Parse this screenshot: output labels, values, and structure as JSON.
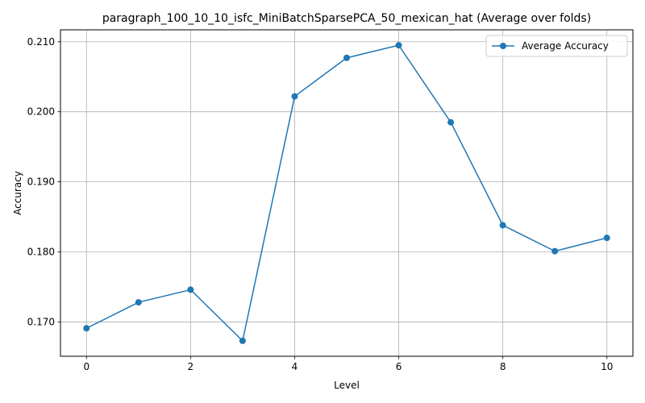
{
  "chart_data": {
    "type": "line",
    "title": "paragraph_100_10_10_isfc_MiniBatchSparsePCA_50_mexican_hat (Average over folds)",
    "xlabel": "Level",
    "ylabel": "Accuracy",
    "xlim": [
      -0.5,
      10.5
    ],
    "ylim": [
      0.1651,
      0.2117
    ],
    "xticks": [
      0,
      2,
      4,
      6,
      8,
      10
    ],
    "yticks": [
      0.17,
      0.18,
      0.19,
      0.2,
      0.21
    ],
    "ytick_labels": [
      "0.170",
      "0.180",
      "0.190",
      "0.200",
      "0.210"
    ],
    "grid": true,
    "legend_position": "top-right",
    "series": [
      {
        "name": "Average Accuracy",
        "color": "#1f77b4",
        "marker": "circle",
        "x": [
          0,
          1,
          2,
          3,
          4,
          5,
          6,
          7,
          8,
          9,
          10
        ],
        "y": [
          0.1691,
          0.1728,
          0.1746,
          0.1673,
          0.2022,
          0.2077,
          0.2095,
          0.1985,
          0.1838,
          0.1801,
          0.182
        ]
      }
    ]
  }
}
